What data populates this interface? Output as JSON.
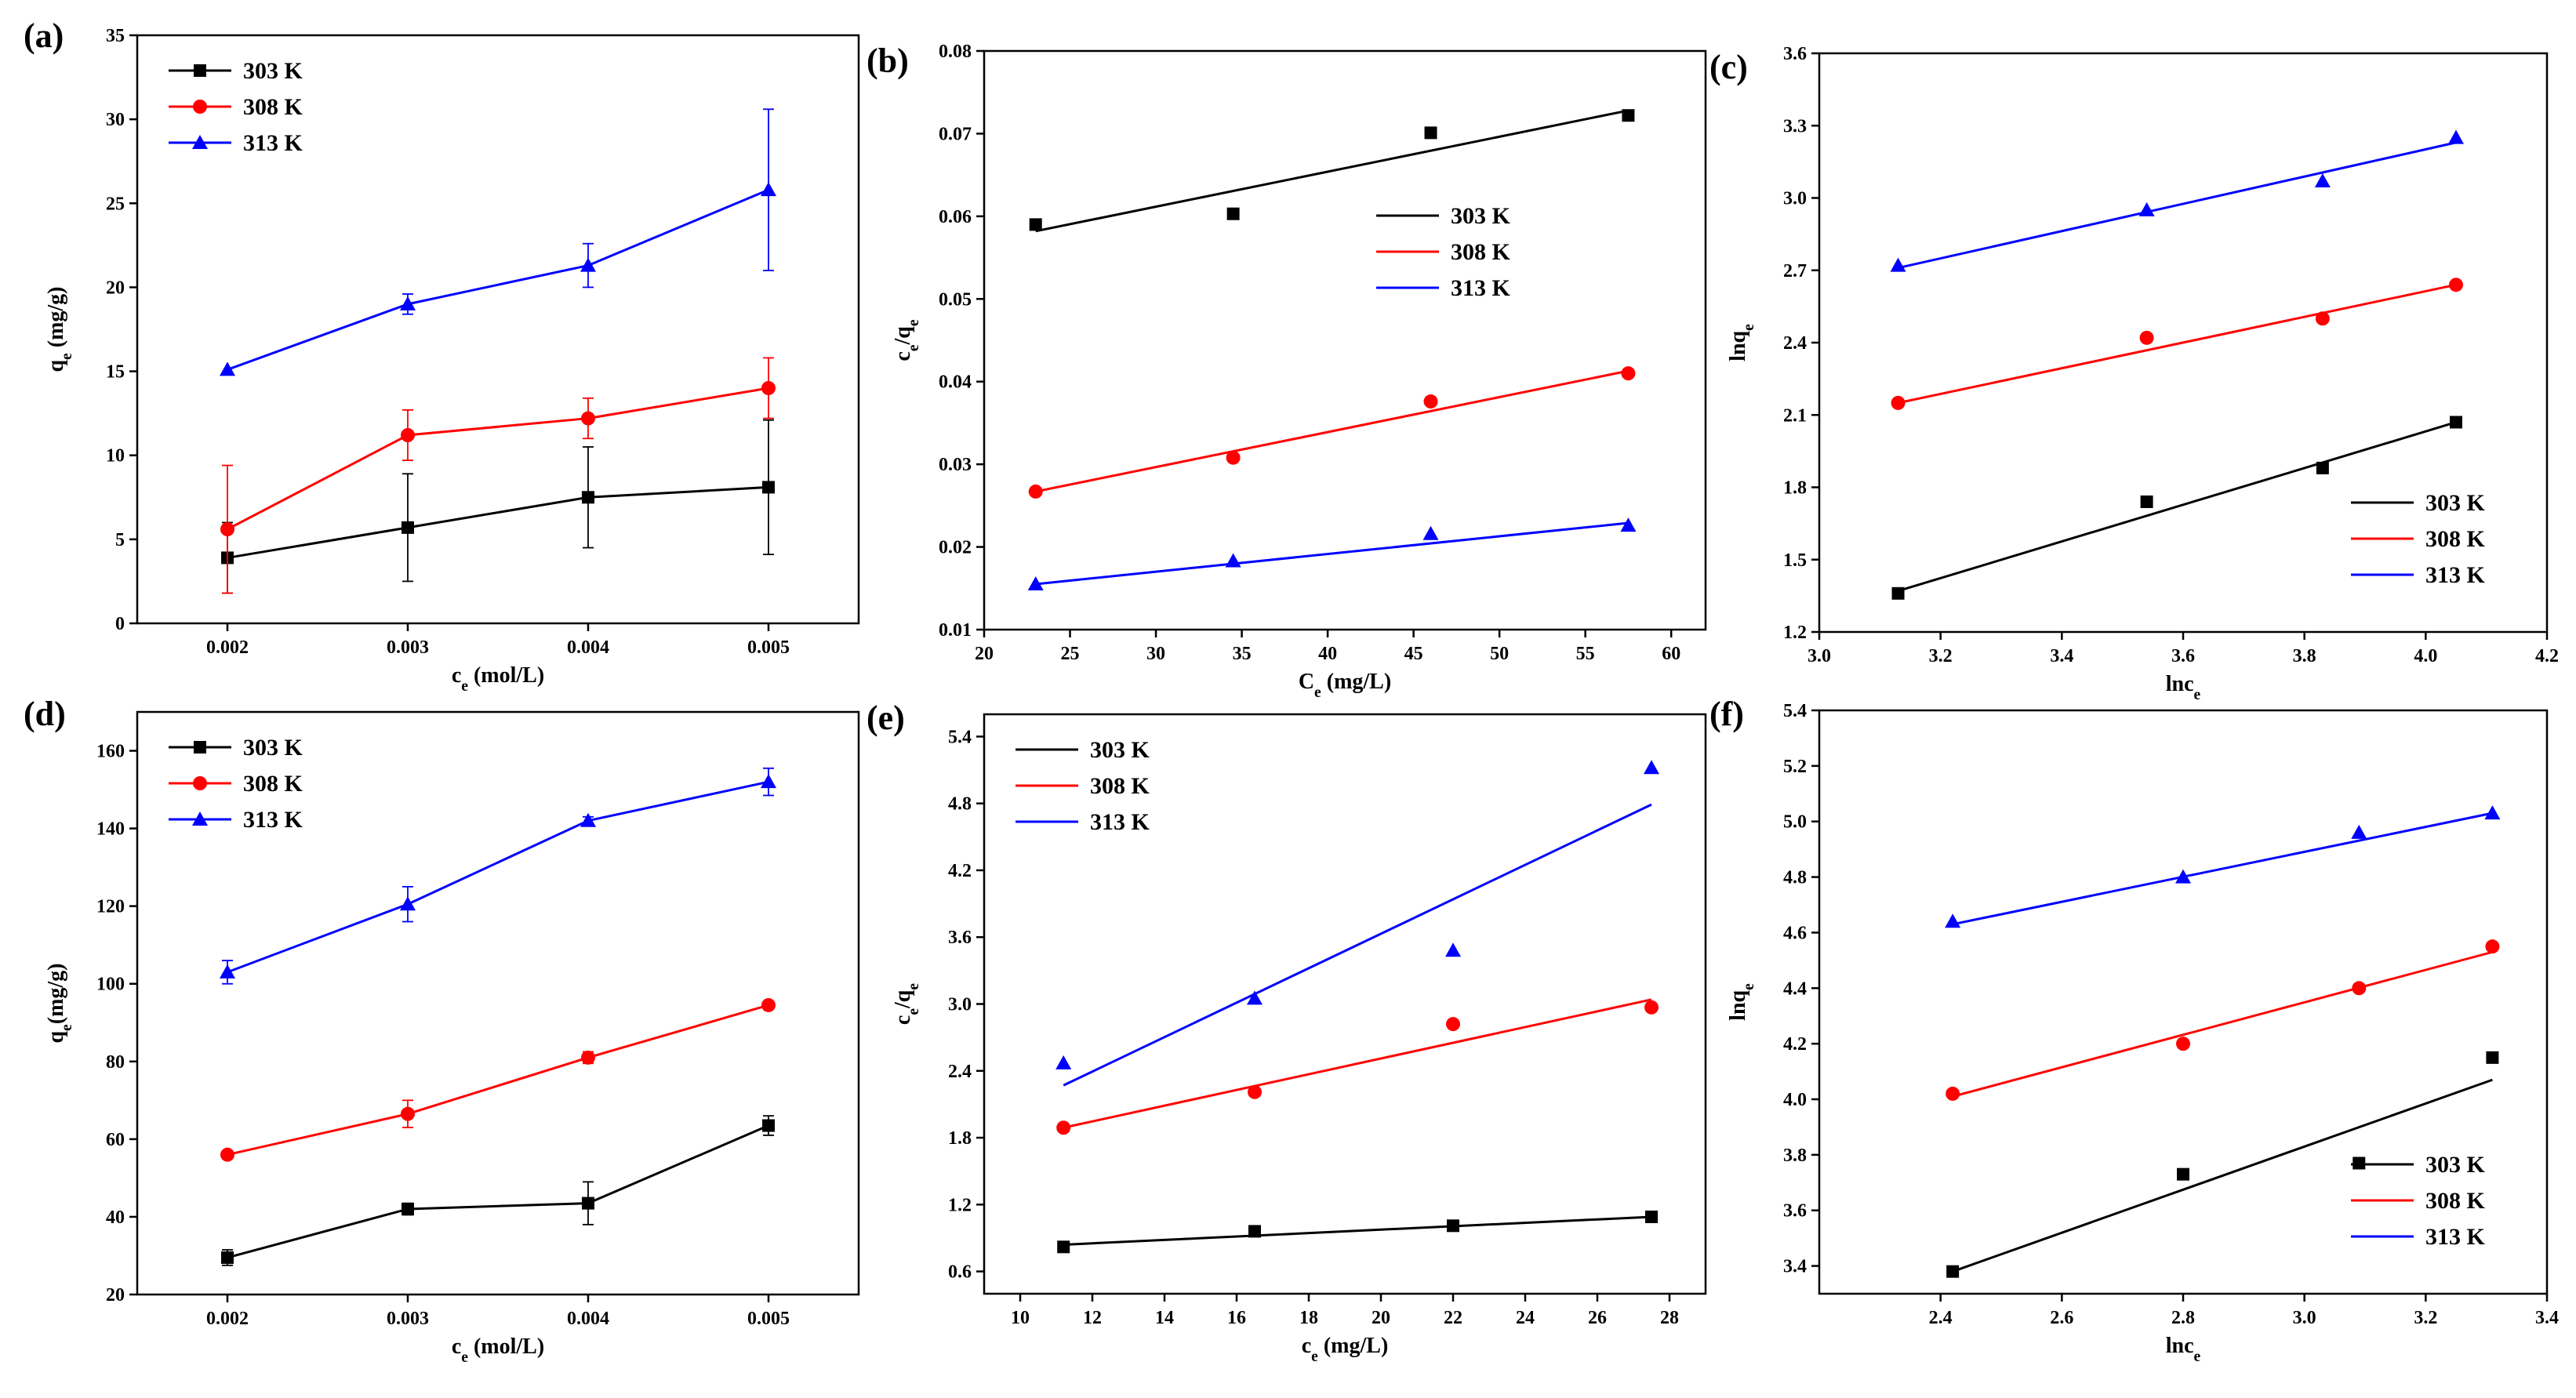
{
  "figure_title": "",
  "chart_data": [
    {
      "panel": "(a)",
      "type": "line",
      "xlabel": "c_e (mol/L)",
      "ylabel": "q_e (mg/g)",
      "xlim": [
        0.0015,
        0.0055
      ],
      "ylim": [
        0,
        35
      ],
      "xticks": [
        0.002,
        0.003,
        0.004,
        0.005
      ],
      "xtick_labels": [
        "0.002",
        "0.003",
        "0.004",
        "0.005"
      ],
      "yticks": [
        0,
        5,
        10,
        15,
        20,
        25,
        30,
        35
      ],
      "ytick_labels": [
        "0",
        "5",
        "10",
        "15",
        "20",
        "25",
        "30",
        "35"
      ],
      "legend_position": "top-left",
      "series": [
        {
          "name": "303 K",
          "color": "#000000",
          "marker": "square",
          "x": [
            0.002,
            0.003,
            0.004,
            0.005
          ],
          "y": [
            3.9,
            5.7,
            7.5,
            8.1
          ],
          "err": [
            2.1,
            3.2,
            3.0,
            4.0
          ]
        },
        {
          "name": "308 K",
          "color": "#ff0000",
          "marker": "circle",
          "x": [
            0.002,
            0.003,
            0.004,
            0.005
          ],
          "y": [
            5.6,
            11.2,
            12.2,
            14.0
          ],
          "err": [
            3.8,
            1.5,
            1.2,
            1.8
          ]
        },
        {
          "name": "313 K",
          "color": "#0000ff",
          "marker": "triangle",
          "x": [
            0.002,
            0.003,
            0.004,
            0.005
          ],
          "y": [
            15.1,
            19.0,
            21.3,
            25.8
          ],
          "err": [
            0.0,
            0.6,
            1.3,
            4.8
          ]
        }
      ]
    },
    {
      "panel": "(b)",
      "type": "scatter",
      "xlabel": "C_e (mg/L)",
      "ylabel": "c_e/q_e",
      "xlim": [
        20,
        62
      ],
      "ylim": [
        0.01,
        0.08
      ],
      "xticks": [
        20,
        25,
        30,
        35,
        40,
        45,
        50,
        55,
        60
      ],
      "xtick_labels": [
        "20",
        "25",
        "30",
        "35",
        "40",
        "45",
        "50",
        "55",
        "60"
      ],
      "yticks": [
        0.01,
        0.02,
        0.03,
        0.04,
        0.05,
        0.06,
        0.07,
        0.08
      ],
      "ytick_labels": [
        "0.01",
        "0.02",
        "0.03",
        "0.04",
        "0.05",
        "0.06",
        "0.07",
        "0.08"
      ],
      "legend_position": "right",
      "series": [
        {
          "name": "303 K",
          "color": "#000000",
          "marker": "square",
          "x": [
            23.0,
            34.5,
            46.0,
            57.5
          ],
          "y": [
            0.059,
            0.0603,
            0.0701,
            0.0722
          ],
          "fit": [
            [
              23.0,
              0.0582
            ],
            [
              57.5,
              0.0728
            ]
          ]
        },
        {
          "name": "308 K",
          "color": "#ff0000",
          "marker": "circle",
          "x": [
            23.0,
            34.5,
            46.0,
            57.5
          ],
          "y": [
            0.0267,
            0.0308,
            0.0376,
            0.041
          ],
          "fit": [
            [
              23.0,
              0.0267
            ],
            [
              57.5,
              0.0413
            ]
          ]
        },
        {
          "name": "313 K",
          "color": "#0000ff",
          "marker": "triangle",
          "x": [
            23.0,
            34.5,
            46.0,
            57.5
          ],
          "y": [
            0.0155,
            0.0183,
            0.0216,
            0.0226
          ],
          "fit": [
            [
              23.0,
              0.0155
            ],
            [
              57.5,
              0.0229
            ]
          ]
        }
      ]
    },
    {
      "panel": "(c)",
      "type": "scatter",
      "xlabel": "lnc_e",
      "ylabel": "lnq_e",
      "xlim": [
        3.0,
        4.2
      ],
      "ylim": [
        1.2,
        3.6
      ],
      "xticks": [
        3.0,
        3.2,
        3.4,
        3.6,
        3.8,
        4.0,
        4.2
      ],
      "xtick_labels": [
        "3.0",
        "3.2",
        "3.4",
        "3.6",
        "3.8",
        "4.0",
        "4.2"
      ],
      "yticks": [
        1.2,
        1.5,
        1.8,
        2.1,
        2.4,
        2.7,
        3.0,
        3.3,
        3.6
      ],
      "ytick_labels": [
        "1.2",
        "1.5",
        "1.8",
        "2.1",
        "2.4",
        "2.7",
        "3.0",
        "3.3",
        "3.6"
      ],
      "legend_position": "bottom-right",
      "series": [
        {
          "name": "303 K",
          "color": "#000000",
          "marker": "square",
          "x": [
            3.13,
            3.54,
            3.83,
            4.05
          ],
          "y": [
            1.36,
            1.74,
            1.88,
            2.07
          ],
          "fit": [
            [
              3.13,
              1.37
            ],
            [
              4.05,
              2.07
            ]
          ]
        },
        {
          "name": "308 K",
          "color": "#ff0000",
          "marker": "circle",
          "x": [
            3.13,
            3.54,
            3.83,
            4.05
          ],
          "y": [
            2.15,
            2.42,
            2.5,
            2.64
          ],
          "fit": [
            [
              3.13,
              2.15
            ],
            [
              4.05,
              2.64
            ]
          ]
        },
        {
          "name": "313 K",
          "color": "#0000ff",
          "marker": "triangle",
          "x": [
            3.13,
            3.54,
            3.83,
            4.05
          ],
          "y": [
            2.72,
            2.95,
            3.07,
            3.25
          ],
          "fit": [
            [
              3.13,
              2.71
            ],
            [
              4.05,
              3.23
            ]
          ]
        }
      ]
    },
    {
      "panel": "(d)",
      "type": "line",
      "xlabel": "c_e (mol/L)",
      "ylabel": "q_e(mg/g)",
      "xlim": [
        0.0015,
        0.0055
      ],
      "ylim": [
        20,
        170
      ],
      "xticks": [
        0.002,
        0.003,
        0.004,
        0.005
      ],
      "xtick_labels": [
        "0.002",
        "0.003",
        "0.004",
        "0.005"
      ],
      "yticks": [
        20,
        40,
        60,
        80,
        100,
        120,
        140,
        160
      ],
      "ytick_labels": [
        "20",
        "40",
        "60",
        "80",
        "100",
        "120",
        "140",
        "160"
      ],
      "legend_position": "top-left",
      "series": [
        {
          "name": "303 K",
          "color": "#000000",
          "marker": "square",
          "x": [
            0.002,
            0.003,
            0.004,
            0.005
          ],
          "y": [
            29.5,
            42.0,
            43.5,
            63.5
          ],
          "err": [
            2.0,
            1.5,
            5.5,
            2.5
          ]
        },
        {
          "name": "308 K",
          "color": "#ff0000",
          "marker": "circle",
          "x": [
            0.002,
            0.003,
            0.004,
            0.005
          ],
          "y": [
            56.0,
            66.5,
            81.0,
            94.5
          ],
          "err": [
            0.8,
            3.5,
            1.5,
            1.0
          ]
        },
        {
          "name": "313 K",
          "color": "#0000ff",
          "marker": "triangle",
          "x": [
            0.002,
            0.003,
            0.004,
            0.005
          ],
          "y": [
            103.0,
            120.5,
            142.0,
            152.0
          ],
          "err": [
            3.0,
            4.5,
            1.0,
            3.5
          ]
        }
      ]
    },
    {
      "panel": "(e)",
      "type": "scatter",
      "xlabel": "c_e (mg/L)",
      "ylabel": "c_e/q_e",
      "xlim": [
        9,
        29
      ],
      "ylim": [
        0.4,
        5.6
      ],
      "xticks": [
        10,
        12,
        14,
        16,
        18,
        20,
        22,
        24,
        26,
        28
      ],
      "xtick_labels": [
        "10",
        "12",
        "14",
        "16",
        "18",
        "20",
        "22",
        "24",
        "26",
        "28"
      ],
      "yticks": [
        0.6,
        1.2,
        1.8,
        2.4,
        3.0,
        3.6,
        4.2,
        4.8,
        5.4
      ],
      "ytick_labels": [
        "0.6",
        "1.2",
        "1.8",
        "2.4",
        "3.0",
        "3.6",
        "4.2",
        "4.8",
        "5.4"
      ],
      "legend_position": "top-left",
      "series": [
        {
          "name": "303 K",
          "color": "#000000",
          "marker": "square",
          "x": [
            11.2,
            16.5,
            22.0,
            27.5
          ],
          "y": [
            0.82,
            0.96,
            1.01,
            1.09
          ],
          "fit": [
            [
              11.2,
              0.84
            ],
            [
              27.5,
              1.09
            ]
          ]
        },
        {
          "name": "308 K",
          "color": "#ff0000",
          "marker": "circle",
          "x": [
            11.2,
            16.5,
            22.0,
            27.5
          ],
          "y": [
            1.89,
            2.21,
            2.82,
            2.97
          ],
          "fit": [
            [
              11.2,
              1.89
            ],
            [
              27.5,
              3.04
            ]
          ]
        },
        {
          "name": "313 K",
          "color": "#0000ff",
          "marker": "triangle",
          "x": [
            11.2,
            16.5,
            22.0,
            27.5
          ],
          "y": [
            2.47,
            3.05,
            3.48,
            5.12
          ],
          "fit": [
            [
              11.2,
              2.27
            ],
            [
              27.5,
              4.79
            ]
          ]
        }
      ]
    },
    {
      "panel": "(f)",
      "type": "scatter",
      "xlabel": "lnc_e",
      "ylabel": "lnq_e",
      "xlim": [
        2.2,
        3.4
      ],
      "ylim": [
        3.3,
        5.4
      ],
      "xticks": [
        2.4,
        2.6,
        2.8,
        3.0,
        3.2,
        3.4
      ],
      "xtick_labels": [
        "2.4",
        "2.6",
        "2.8",
        "3.0",
        "3.2",
        "3.4"
      ],
      "yticks": [
        3.4,
        3.6,
        3.8,
        4.0,
        4.2,
        4.4,
        4.6,
        4.8,
        5.0,
        5.2,
        5.4
      ],
      "ytick_labels": [
        "3.4",
        "3.6",
        "3.8",
        "4.0",
        "4.2",
        "4.4",
        "4.6",
        "4.8",
        "5.0",
        "5.2",
        "5.4"
      ],
      "legend_position": "bottom-right",
      "series": [
        {
          "name": "303 K",
          "color": "#000000",
          "marker": "square",
          "x": [
            2.42,
            2.8,
            3.09,
            3.31
          ],
          "y": [
            3.38,
            3.73,
            3.77,
            4.15
          ],
          "fit": [
            [
              2.42,
              3.38
            ],
            [
              3.31,
              4.07
            ]
          ]
        },
        {
          "name": "308 K",
          "color": "#ff0000",
          "marker": "circle",
          "x": [
            2.42,
            2.8,
            3.09,
            3.31
          ],
          "y": [
            4.02,
            4.2,
            4.4,
            4.55
          ],
          "fit": [
            [
              2.42,
              4.01
            ],
            [
              3.31,
              4.53
            ]
          ]
        },
        {
          "name": "313 K",
          "color": "#0000ff",
          "marker": "triangle",
          "x": [
            2.42,
            2.8,
            3.09,
            3.31
          ],
          "y": [
            4.64,
            4.8,
            4.96,
            5.03
          ],
          "fit": [
            [
              2.42,
              4.63
            ],
            [
              3.31,
              5.03
            ]
          ]
        }
      ]
    }
  ]
}
